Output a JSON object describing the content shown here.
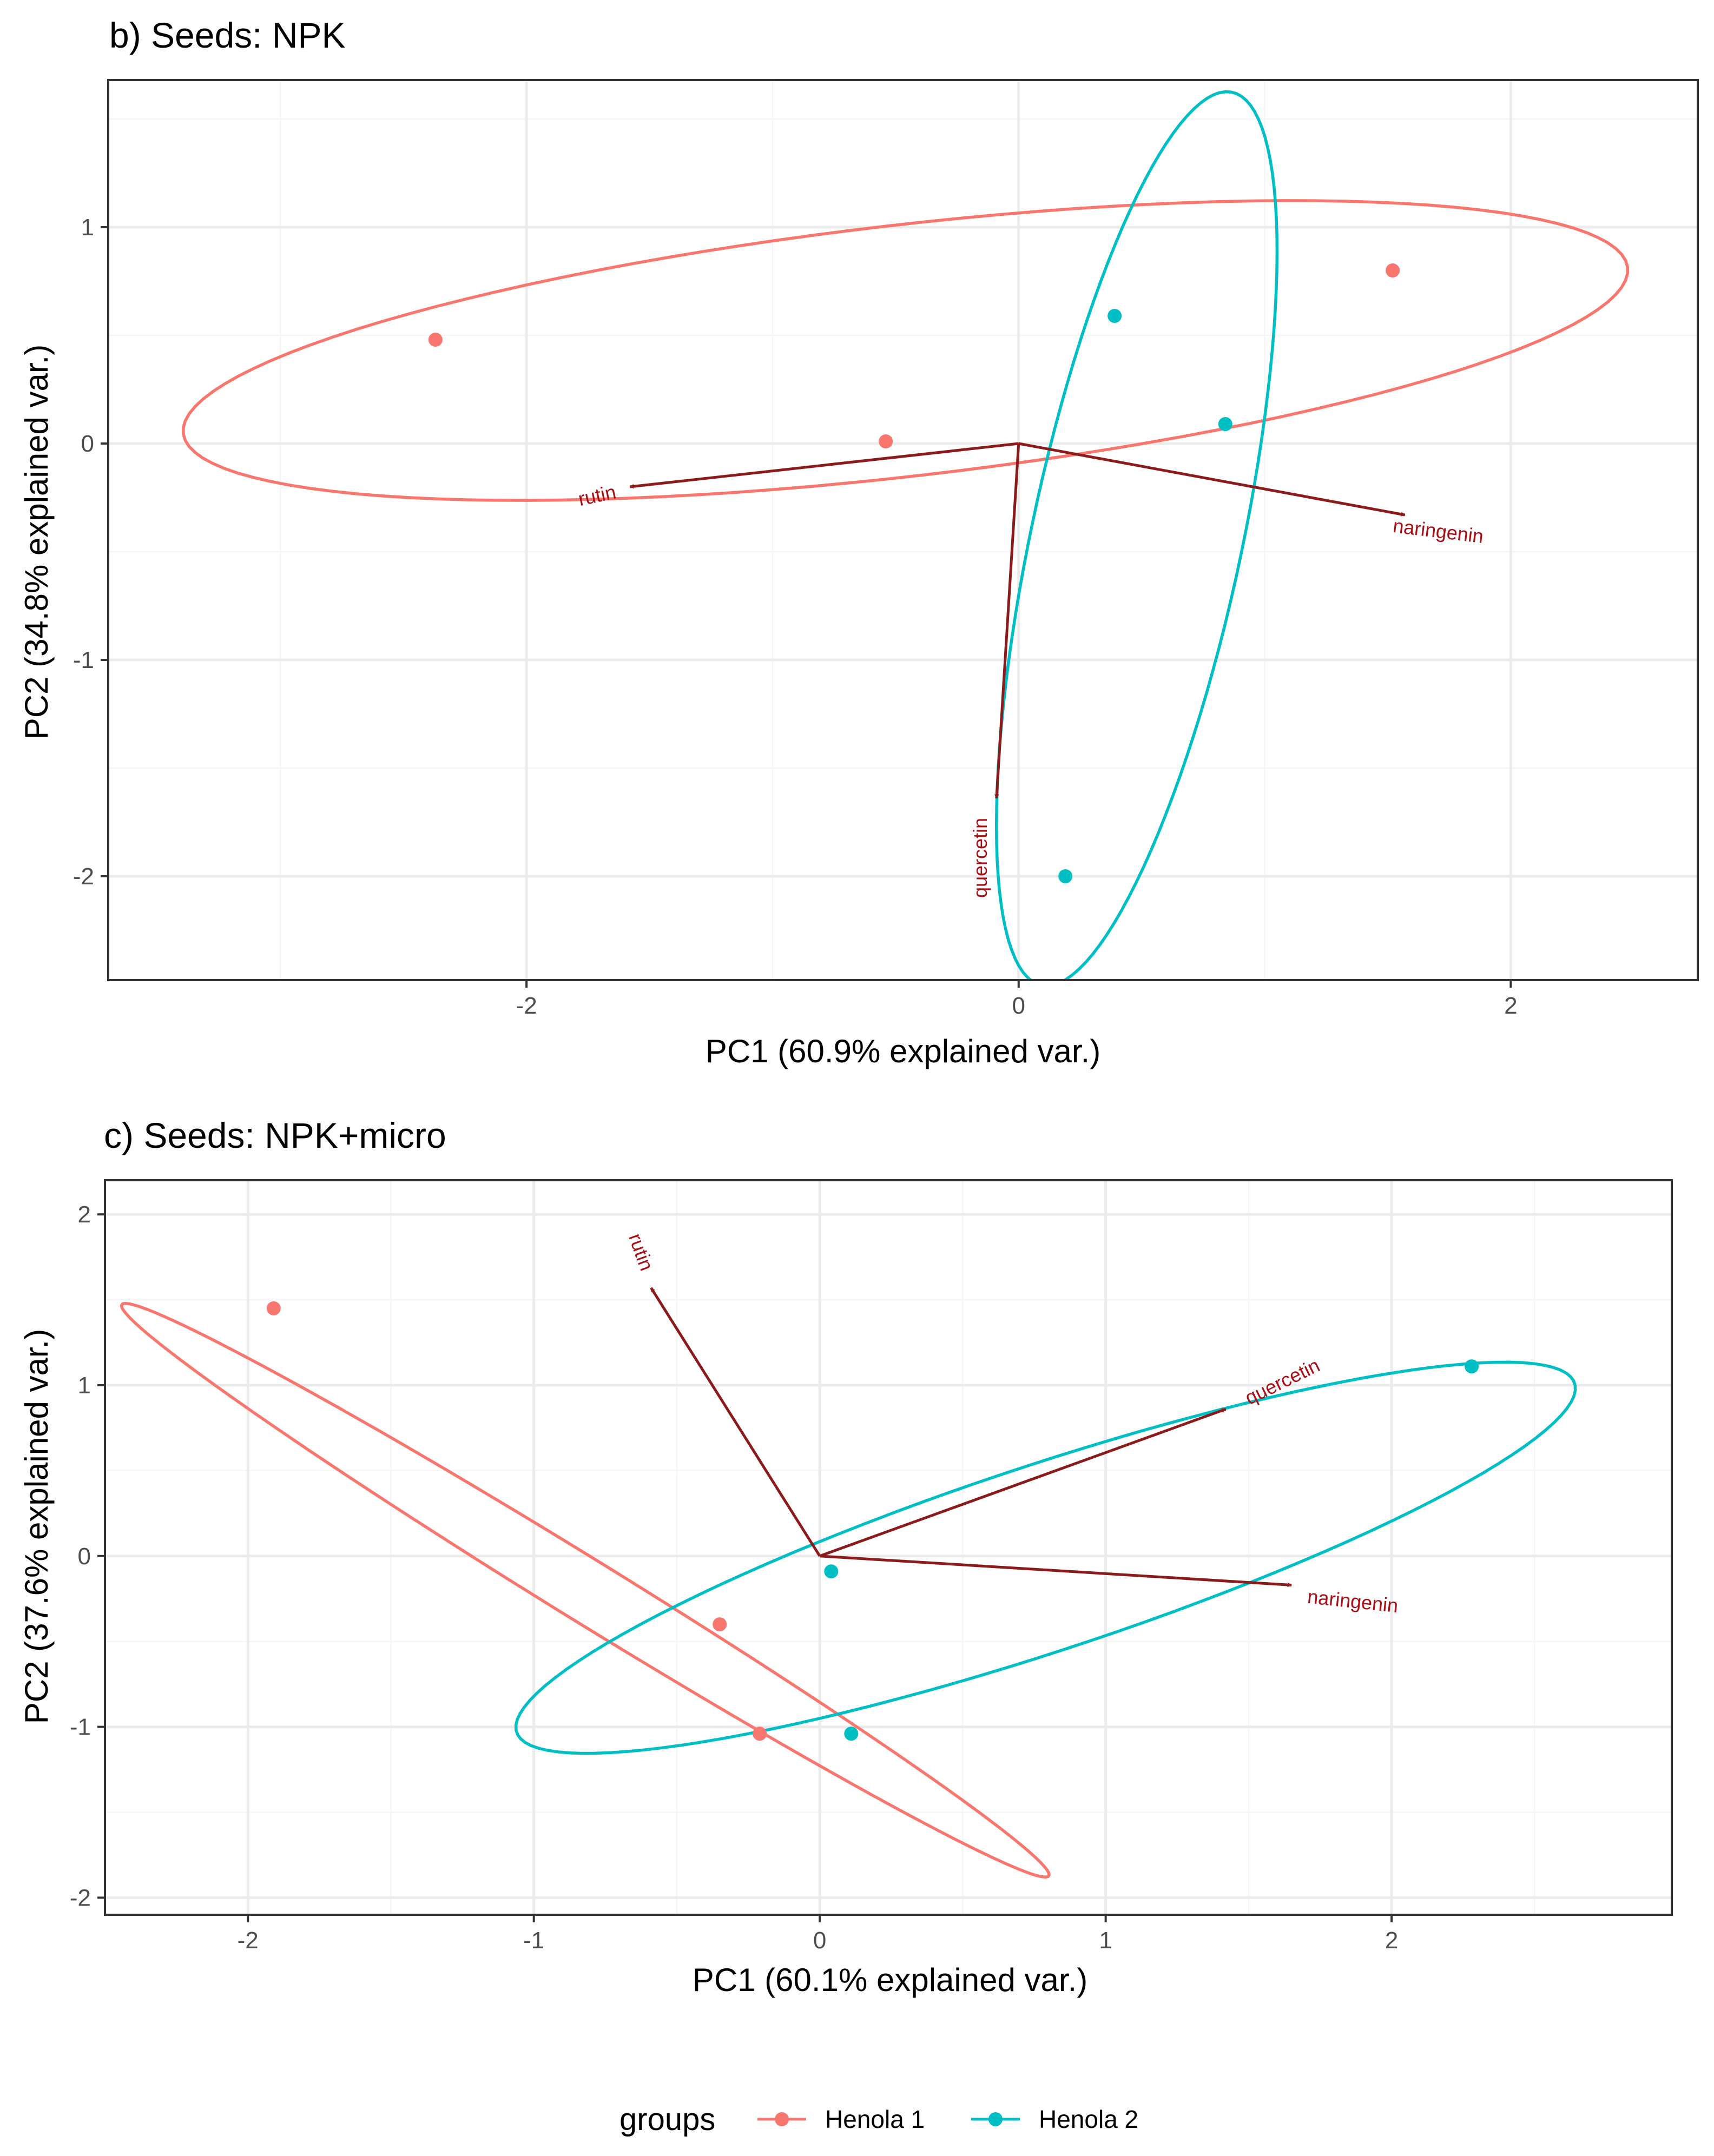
{
  "chart_data": [
    {
      "type": "scatter",
      "subtype": "pca-biplot",
      "title": "b) Seeds: NPK",
      "xlabel": "PC1 (60.9% explained var.)",
      "ylabel": "PC2 (34.8% explained var.)",
      "xlim": [
        -3.7,
        2.76
      ],
      "ylim": [
        -2.48,
        1.68
      ],
      "xticks": [
        -2,
        0,
        2
      ],
      "yticks": [
        -2,
        -1,
        0,
        1
      ],
      "xtick_labels": [
        "-2",
        "0",
        "2"
      ],
      "ytick_labels": [
        "-2",
        "-1",
        "0",
        "1"
      ],
      "grid": true,
      "series": [
        {
          "name": "Henola 1",
          "points": [
            {
              "x": -2.37,
              "y": 0.48
            },
            {
              "x": -0.54,
              "y": 0.01
            },
            {
              "x": 1.52,
              "y": 0.8
            }
          ],
          "ellipse": {
            "cx": -0.46,
            "cy": 0.43,
            "a": 2.96,
            "b": 0.58,
            "angle_deg": 7.5
          }
        },
        {
          "name": "Henola 2",
          "points": [
            {
              "x": 0.39,
              "y": 0.59
            },
            {
              "x": 0.84,
              "y": 0.09
            },
            {
              "x": 0.19,
              "y": -2.0
            }
          ],
          "ellipse": {
            "cx": 0.48,
            "cy": -0.44,
            "a": 2.1,
            "b": 0.43,
            "angle_deg": 79.5
          }
        }
      ],
      "loadings": [
        {
          "name": "rutin",
          "x": -1.58,
          "y": -0.2
        },
        {
          "name": "naringenin",
          "x": 1.57,
          "y": -0.33
        },
        {
          "name": "quercetin",
          "x": -0.09,
          "y": -1.64
        }
      ]
    },
    {
      "type": "scatter",
      "subtype": "pca-biplot",
      "title": "c) Seeds: NPK+micro",
      "xlabel": "PC1 (60.1% explained var.)",
      "ylabel": "PC2 (37.6% explained var.)",
      "xlim": [
        -2.5,
        2.98
      ],
      "ylim": [
        -2.1,
        2.2
      ],
      "xticks": [
        -2,
        -1,
        0,
        1,
        2
      ],
      "yticks": [
        -2,
        -1,
        0,
        1,
        2
      ],
      "xtick_labels": [
        "-2",
        "-1",
        "0",
        "1",
        "2"
      ],
      "ytick_labels": [
        "-2",
        "-1",
        "0",
        "1",
        "2"
      ],
      "grid": true,
      "series": [
        {
          "name": "Henola 1",
          "points": [
            {
              "x": -1.91,
              "y": 1.45
            },
            {
              "x": -0.35,
              "y": -0.4
            },
            {
              "x": -0.21,
              "y": -1.04
            }
          ],
          "ellipse": {
            "cx": -0.82,
            "cy": -0.2,
            "a": 2.33,
            "b": 0.15,
            "angle_deg": -46
          }
        },
        {
          "name": "Henola 2",
          "points": [
            {
              "x": 2.28,
              "y": 1.11
            },
            {
              "x": 0.04,
              "y": -0.09
            },
            {
              "x": 0.11,
              "y": -1.04
            }
          ],
          "ellipse": {
            "cx": 0.79,
            "cy": -0.01,
            "a": 2.12,
            "b": 0.5,
            "angle_deg": 30
          }
        }
      ],
      "loadings": [
        {
          "name": "rutin",
          "x": -0.59,
          "y": 1.57
        },
        {
          "name": "quercetin",
          "x": 1.42,
          "y": 0.86
        },
        {
          "name": "naringenin",
          "x": 1.65,
          "y": -0.17
        }
      ]
    }
  ],
  "legend": {
    "title": "groups",
    "position": "bottom",
    "items": [
      {
        "label": "Henola 1",
        "color": "#f8766d"
      },
      {
        "label": "Henola 2",
        "color": "#00bfc4"
      }
    ]
  },
  "colors": {
    "henola1": "#f8766d",
    "henola2": "#00bfc4",
    "arrow": "#8b1a1a",
    "arrow_text": "#a50f15",
    "grid_major": "#ebebeb",
    "grid_minor": "#f5f5f5",
    "panel_border": "#333333"
  }
}
